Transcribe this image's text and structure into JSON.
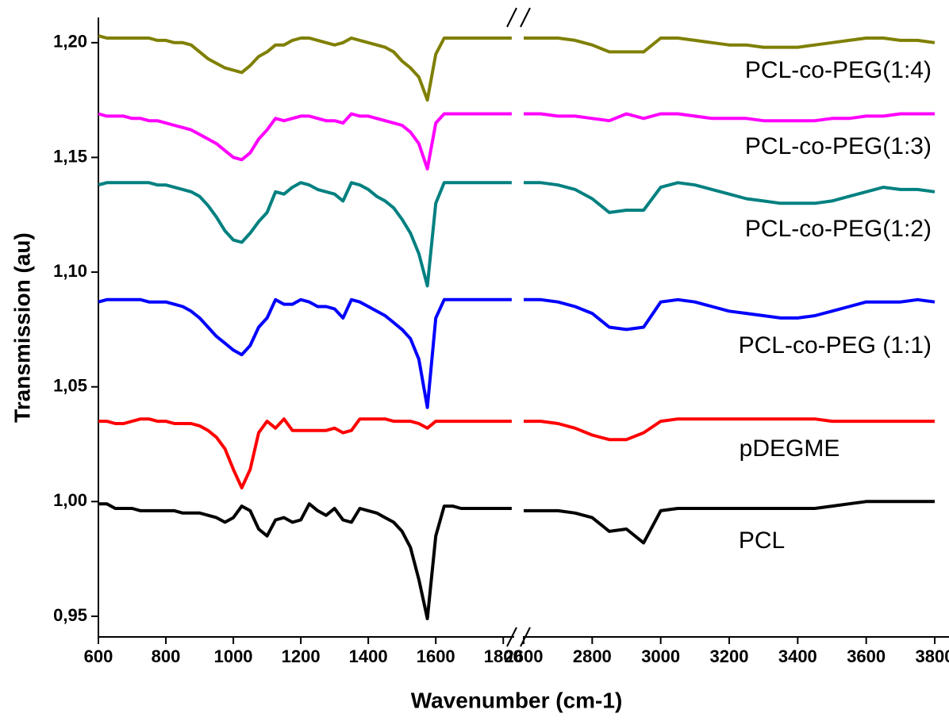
{
  "chart_data": {
    "type": "line",
    "xlabel": "Wavenumber (cm-1)",
    "ylabel": "Transmission (au)",
    "xlim": [
      600,
      3800
    ],
    "xbreak": [
      1830,
      2600
    ],
    "xticks": [
      600,
      800,
      1000,
      1200,
      1400,
      1600,
      1800,
      2600,
      2800,
      3000,
      3200,
      3400,
      3600,
      3800
    ],
    "ylim": [
      0.941,
      1.211
    ],
    "yticks": [
      {
        "value": 0.95,
        "label": "0,95"
      },
      {
        "value": 1.0,
        "label": "1,00"
      },
      {
        "value": 1.05,
        "label": "1,05"
      },
      {
        "value": 1.1,
        "label": "1,10"
      },
      {
        "value": 1.15,
        "label": "1,15"
      },
      {
        "value": 1.2,
        "label": "1,20"
      }
    ],
    "x": [
      600,
      625,
      650,
      675,
      700,
      725,
      750,
      775,
      800,
      825,
      850,
      875,
      900,
      925,
      950,
      975,
      1000,
      1025,
      1050,
      1075,
      1100,
      1125,
      1150,
      1175,
      1200,
      1225,
      1250,
      1275,
      1300,
      1325,
      1350,
      1375,
      1400,
      1425,
      1450,
      1475,
      1500,
      1525,
      1550,
      1575,
      1600,
      1625,
      1650,
      1675,
      1700,
      1725,
      1750,
      1775,
      1800,
      1825,
      2600,
      2650,
      2700,
      2750,
      2800,
      2850,
      2900,
      2950,
      3000,
      3050,
      3100,
      3150,
      3200,
      3250,
      3300,
      3350,
      3400,
      3450,
      3500,
      3550,
      3600,
      3650,
      3700,
      3750,
      3800
    ],
    "series": [
      {
        "name": "PCL-co-PEG(1:4)",
        "color": "#7f7f00",
        "values": [
          1.203,
          1.202,
          1.202,
          1.202,
          1.202,
          1.202,
          1.202,
          1.201,
          1.201,
          1.2,
          1.2,
          1.199,
          1.196,
          1.193,
          1.191,
          1.189,
          1.188,
          1.187,
          1.19,
          1.194,
          1.196,
          1.199,
          1.199,
          1.201,
          1.202,
          1.202,
          1.201,
          1.2,
          1.199,
          1.2,
          1.202,
          1.201,
          1.2,
          1.199,
          1.198,
          1.196,
          1.192,
          1.189,
          1.185,
          1.175,
          1.195,
          1.202,
          1.202,
          1.202,
          1.202,
          1.202,
          1.202,
          1.202,
          1.202,
          1.202,
          1.202,
          1.202,
          1.202,
          1.201,
          1.199,
          1.196,
          1.196,
          1.196,
          1.202,
          1.202,
          1.201,
          1.2,
          1.199,
          1.199,
          1.198,
          1.198,
          1.198,
          1.199,
          1.2,
          1.201,
          1.202,
          1.202,
          1.201,
          1.201,
          1.2
        ]
      },
      {
        "name": "PCL-co-PEG(1:3)",
        "color": "#ff00ff",
        "values": [
          1.169,
          1.168,
          1.168,
          1.168,
          1.167,
          1.167,
          1.166,
          1.166,
          1.165,
          1.164,
          1.163,
          1.162,
          1.16,
          1.158,
          1.156,
          1.153,
          1.15,
          1.149,
          1.152,
          1.158,
          1.162,
          1.167,
          1.166,
          1.167,
          1.168,
          1.168,
          1.167,
          1.166,
          1.166,
          1.165,
          1.169,
          1.168,
          1.168,
          1.167,
          1.166,
          1.165,
          1.164,
          1.161,
          1.156,
          1.145,
          1.165,
          1.169,
          1.169,
          1.169,
          1.169,
          1.169,
          1.169,
          1.169,
          1.169,
          1.169,
          1.169,
          1.169,
          1.168,
          1.168,
          1.167,
          1.166,
          1.169,
          1.167,
          1.169,
          1.169,
          1.168,
          1.167,
          1.167,
          1.167,
          1.166,
          1.166,
          1.166,
          1.166,
          1.167,
          1.167,
          1.168,
          1.168,
          1.169,
          1.169,
          1.169
        ]
      },
      {
        "name": "PCL-co-PEG(1:2)",
        "color": "#008080",
        "values": [
          1.138,
          1.139,
          1.139,
          1.139,
          1.139,
          1.139,
          1.139,
          1.138,
          1.138,
          1.137,
          1.136,
          1.135,
          1.133,
          1.129,
          1.124,
          1.118,
          1.114,
          1.113,
          1.117,
          1.122,
          1.126,
          1.135,
          1.134,
          1.137,
          1.139,
          1.138,
          1.136,
          1.135,
          1.134,
          1.131,
          1.139,
          1.138,
          1.136,
          1.133,
          1.131,
          1.128,
          1.123,
          1.117,
          1.108,
          1.094,
          1.13,
          1.139,
          1.139,
          1.139,
          1.139,
          1.139,
          1.139,
          1.139,
          1.139,
          1.139,
          1.139,
          1.139,
          1.138,
          1.136,
          1.132,
          1.126,
          1.127,
          1.127,
          1.137,
          1.139,
          1.138,
          1.136,
          1.134,
          1.132,
          1.131,
          1.13,
          1.13,
          1.13,
          1.131,
          1.133,
          1.135,
          1.137,
          1.136,
          1.136,
          1.135
        ]
      },
      {
        "name": "PCL-co-PEG (1:1)",
        "color": "#0000ff",
        "values": [
          1.087,
          1.088,
          1.088,
          1.088,
          1.088,
          1.088,
          1.087,
          1.087,
          1.087,
          1.086,
          1.085,
          1.083,
          1.08,
          1.076,
          1.072,
          1.069,
          1.066,
          1.064,
          1.068,
          1.076,
          1.08,
          1.088,
          1.086,
          1.086,
          1.088,
          1.087,
          1.085,
          1.085,
          1.084,
          1.08,
          1.088,
          1.087,
          1.085,
          1.083,
          1.081,
          1.078,
          1.075,
          1.071,
          1.062,
          1.041,
          1.08,
          1.088,
          1.088,
          1.088,
          1.088,
          1.088,
          1.088,
          1.088,
          1.088,
          1.088,
          1.088,
          1.088,
          1.087,
          1.085,
          1.082,
          1.076,
          1.075,
          1.076,
          1.087,
          1.088,
          1.087,
          1.085,
          1.083,
          1.082,
          1.081,
          1.08,
          1.08,
          1.081,
          1.083,
          1.085,
          1.087,
          1.087,
          1.087,
          1.088,
          1.087
        ]
      },
      {
        "name": "pDEGME",
        "color": "#ff0000",
        "values": [
          1.035,
          1.035,
          1.034,
          1.034,
          1.035,
          1.036,
          1.036,
          1.035,
          1.035,
          1.034,
          1.034,
          1.034,
          1.033,
          1.031,
          1.028,
          1.023,
          1.014,
          1.006,
          1.014,
          1.03,
          1.035,
          1.032,
          1.036,
          1.031,
          1.031,
          1.031,
          1.031,
          1.031,
          1.032,
          1.03,
          1.031,
          1.036,
          1.036,
          1.036,
          1.036,
          1.035,
          1.035,
          1.035,
          1.034,
          1.032,
          1.035,
          1.035,
          1.035,
          1.035,
          1.035,
          1.035,
          1.035,
          1.035,
          1.035,
          1.035,
          1.035,
          1.035,
          1.034,
          1.032,
          1.029,
          1.027,
          1.027,
          1.03,
          1.035,
          1.036,
          1.036,
          1.036,
          1.036,
          1.036,
          1.036,
          1.036,
          1.036,
          1.036,
          1.035,
          1.035,
          1.035,
          1.035,
          1.035,
          1.035,
          1.035
        ]
      },
      {
        "name": "PCL",
        "color": "#000000",
        "values": [
          0.999,
          0.999,
          0.997,
          0.997,
          0.997,
          0.996,
          0.996,
          0.996,
          0.996,
          0.996,
          0.995,
          0.995,
          0.995,
          0.994,
          0.993,
          0.991,
          0.993,
          0.998,
          0.996,
          0.988,
          0.985,
          0.992,
          0.993,
          0.991,
          0.992,
          0.999,
          0.996,
          0.994,
          0.997,
          0.992,
          0.991,
          0.997,
          0.996,
          0.995,
          0.993,
          0.991,
          0.987,
          0.98,
          0.966,
          0.949,
          0.985,
          0.998,
          0.998,
          0.997,
          0.997,
          0.997,
          0.997,
          0.997,
          0.997,
          0.997,
          0.996,
          0.996,
          0.996,
          0.995,
          0.993,
          0.987,
          0.988,
          0.982,
          0.996,
          0.997,
          0.997,
          0.997,
          0.997,
          0.997,
          0.997,
          0.997,
          0.997,
          0.997,
          0.998,
          0.999,
          1.0,
          1.0,
          1.0,
          1.0,
          1.0
        ]
      }
    ]
  }
}
